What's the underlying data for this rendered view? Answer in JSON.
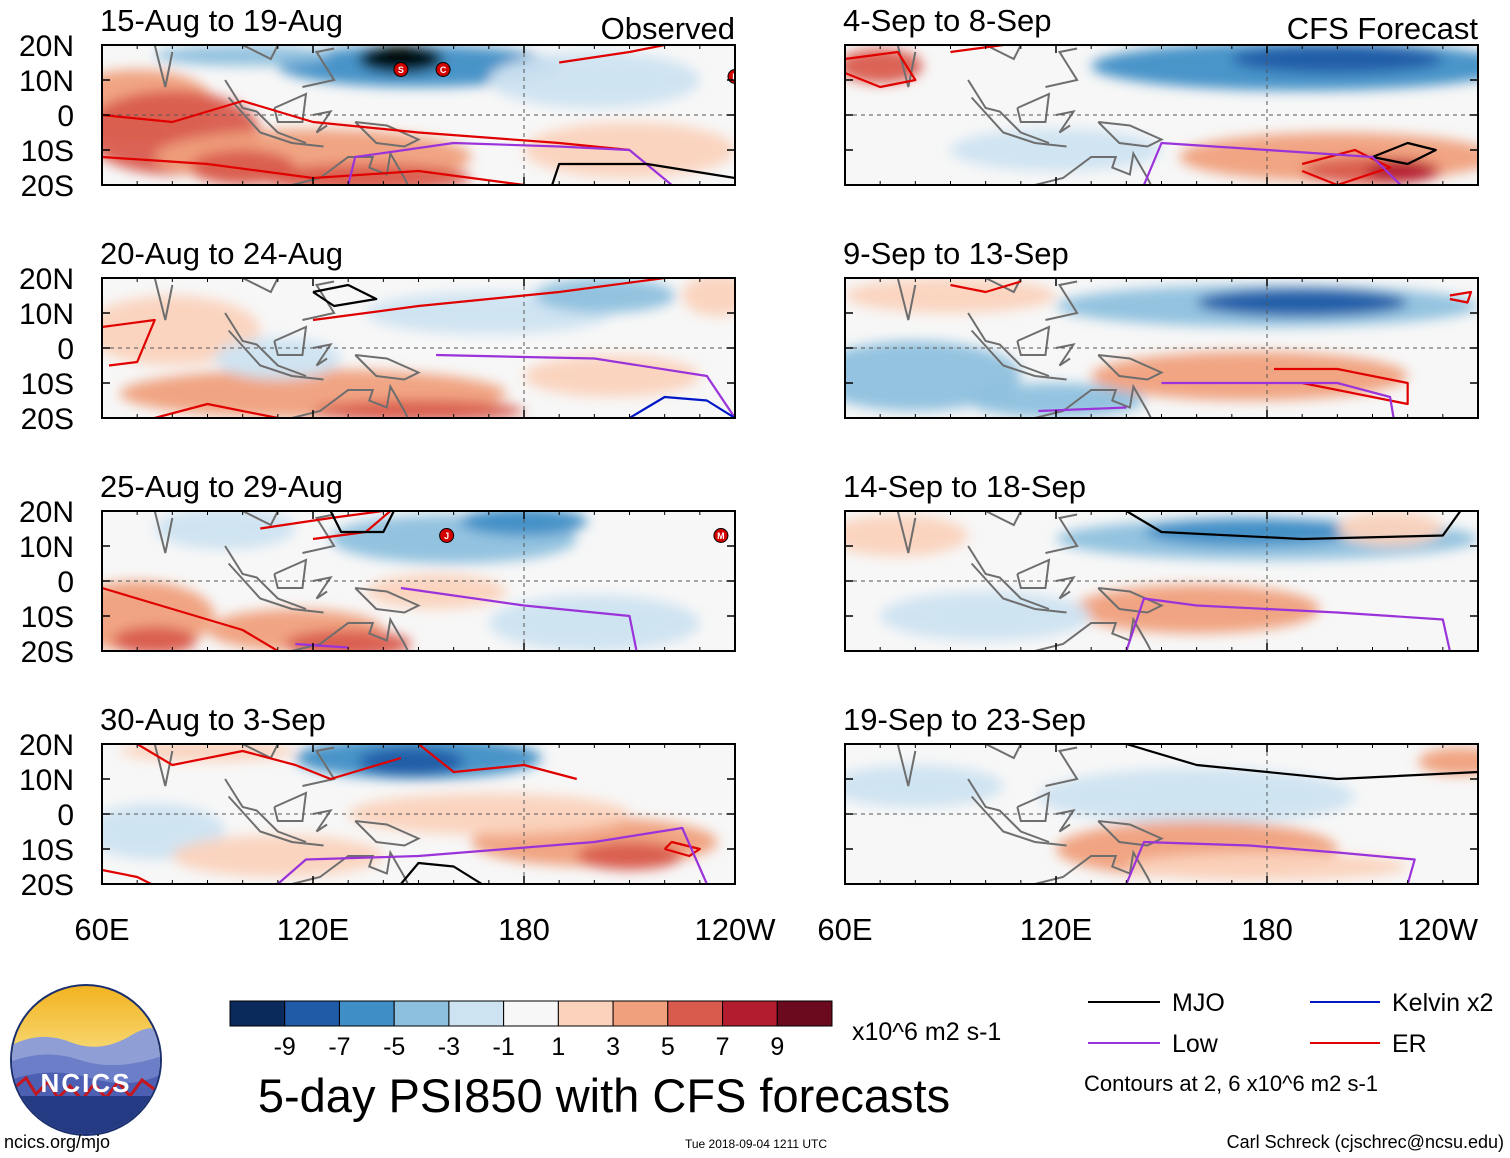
{
  "chart_data": {
    "type": "heatmap",
    "title": "5-day PSI850 with CFS forecasts",
    "variable": "PSI850",
    "units": "x10^6 m2 s-1",
    "contour_note": "Contours at 2, 6 x10^6 m2 s-1",
    "x_ticks": [
      "60E",
      "120E",
      "180",
      "120W"
    ],
    "y_ticks": [
      "20N",
      "10N",
      "0",
      "10S",
      "20S"
    ],
    "xlim": [
      60,
      240
    ],
    "ylim": [
      -20,
      20
    ],
    "columns": [
      {
        "header": "Observed",
        "panels": [
          "15-Aug to 19-Aug",
          "20-Aug to 24-Aug",
          "25-Aug to 29-Aug",
          "30-Aug to 3-Sep"
        ]
      },
      {
        "header": "CFS Forecast",
        "panels": [
          "4-Sep to 8-Sep",
          "9-Sep to 13-Sep",
          "14-Sep to 18-Sep",
          "19-Sep to 23-Sep"
        ]
      }
    ],
    "colorbar": {
      "labels": [
        "-9",
        "-7",
        "-5",
        "-3",
        "-1",
        "1",
        "3",
        "5",
        "7",
        "9"
      ],
      "colors": [
        "#0b2a5c",
        "#1f5ba6",
        "#3f8ec6",
        "#8dc0de",
        "#cde3f1",
        "#f7f7f7",
        "#fbd3bd",
        "#f0a07c",
        "#d95b4d",
        "#b31b2e",
        "#6b0a1f"
      ]
    },
    "legend": [
      {
        "label": "MJO",
        "color": "#000000"
      },
      {
        "label": "Kelvin x2",
        "color": "#0018c8"
      },
      {
        "label": "Low",
        "color": "#9a33d9"
      },
      {
        "label": "ER",
        "color": "#e00000"
      }
    ],
    "storm_markers": [
      {
        "panel": 0,
        "letter": "S",
        "lon": 145,
        "lat": 13
      },
      {
        "panel": 0,
        "letter": "C",
        "lon": 157,
        "lat": 13
      },
      {
        "panel": 0,
        "letter": "L",
        "lon": 240,
        "lat": 11
      },
      {
        "panel": 2,
        "letter": "J",
        "lon": 158,
        "lat": 13
      },
      {
        "panel": 2,
        "letter": "M",
        "lon": 236,
        "lat": 13
      }
    ]
  },
  "logo": {
    "text": "NCICS"
  },
  "footer": {
    "url": "ncics.org/mjo",
    "timestamp": "Tue 2018-09-04 1211 UTC",
    "credit": "Carl Schreck (cjschrec@ncsu.edu)"
  }
}
